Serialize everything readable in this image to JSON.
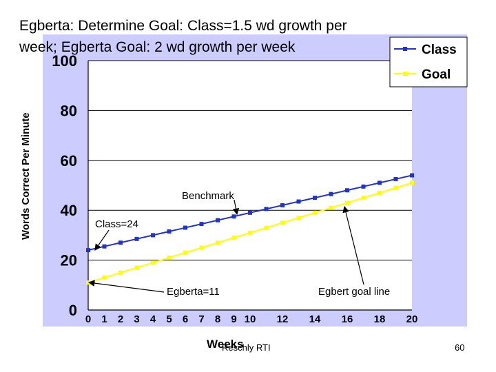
{
  "chart_data": {
    "type": "line",
    "title_line1": "Egberta: Determine Goal: Class=1.5 wd growth per",
    "title_line2": "week; Egberta Goal: 2 wd growth per week",
    "ylabel": "Words Correct Per Minute",
    "xlabel": "Weeks",
    "ylim": [
      0,
      100
    ],
    "xlim": [
      0,
      20
    ],
    "yticks": [
      0,
      20,
      40,
      60,
      80,
      100
    ],
    "xticks": [
      0,
      1,
      2,
      3,
      4,
      5,
      6,
      7,
      8,
      9,
      10,
      12,
      14,
      16,
      18,
      20
    ],
    "x": [
      0,
      1,
      2,
      3,
      4,
      5,
      6,
      7,
      8,
      9,
      10,
      11,
      12,
      13,
      14,
      15,
      16,
      17,
      18,
      19,
      20
    ],
    "grid": "horizontal",
    "legend_position": "top-right",
    "series": [
      {
        "name": "Class",
        "color": "#2233cc",
        "values": [
          24,
          25.5,
          27,
          28.5,
          30,
          31.5,
          33,
          34.5,
          36,
          37.5,
          39,
          40.5,
          42,
          43.5,
          45,
          46.5,
          48,
          49.5,
          51,
          52.5,
          54
        ]
      },
      {
        "name": "Goal",
        "color": "#ffff00",
        "values": [
          11,
          13,
          15,
          17,
          19,
          21,
          23,
          25,
          27,
          29,
          31,
          33,
          35,
          37,
          39,
          41,
          43,
          45,
          47,
          49,
          51
        ]
      }
    ],
    "annotations": [
      {
        "text": "Benchmark",
        "point": [
          9,
          37.5
        ]
      },
      {
        "text": "Class=24",
        "point": [
          0,
          24
        ]
      },
      {
        "text": "Egberta=11",
        "point": [
          0,
          11
        ]
      },
      {
        "text": "Egbert goal line",
        "point": [
          16,
          43
        ]
      }
    ]
  },
  "footer": {
    "source": "Reschly RTI",
    "page_number": "60"
  },
  "colors": {
    "plot_background": "#ccccff",
    "plot_area": "#ffffff"
  }
}
